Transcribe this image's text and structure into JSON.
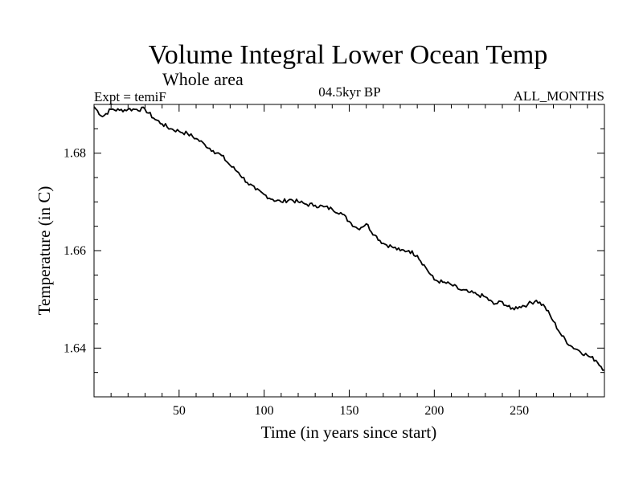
{
  "chart_data": {
    "type": "line",
    "title": "Volume Integral Lower Ocean Temp",
    "subtitle": "Whole area",
    "left_label": "Expt = temiF",
    "center_label": "04.5kyr BP",
    "right_label": "ALL_MONTHS",
    "xlabel": "Time (in years since start)",
    "ylabel": "Temperature (in C)",
    "xlim": [
      0,
      300
    ],
    "ylim": [
      1.63,
      1.69
    ],
    "x_ticks": [
      50,
      100,
      150,
      200,
      250
    ],
    "x_tick_labels": [
      "50",
      "100",
      "150",
      "200",
      "250"
    ],
    "y_ticks": [
      1.64,
      1.66,
      1.68
    ],
    "y_tick_labels": [
      "1.64",
      "1.66",
      "1.68"
    ],
    "series": [
      {
        "name": "temiF",
        "x": [
          0,
          5,
          10,
          15,
          20,
          25,
          30,
          35,
          40,
          45,
          50,
          55,
          60,
          65,
          70,
          75,
          80,
          85,
          90,
          95,
          100,
          105,
          110,
          115,
          120,
          125,
          130,
          135,
          140,
          145,
          150,
          155,
          160,
          165,
          170,
          175,
          180,
          185,
          190,
          195,
          200,
          205,
          210,
          215,
          220,
          225,
          230,
          235,
          240,
          245,
          250,
          255,
          260,
          265,
          270,
          275,
          280,
          285,
          290,
          295,
          300
        ],
        "y": [
          1.6895,
          1.6875,
          1.689,
          1.6888,
          1.689,
          1.689,
          1.689,
          1.6872,
          1.686,
          1.685,
          1.6845,
          1.684,
          1.683,
          1.6818,
          1.6805,
          1.6795,
          1.6775,
          1.676,
          1.674,
          1.6725,
          1.6715,
          1.6705,
          1.67,
          1.6705,
          1.67,
          1.6695,
          1.6693,
          1.669,
          1.6685,
          1.6678,
          1.666,
          1.6645,
          1.6655,
          1.6632,
          1.6615,
          1.6608,
          1.66,
          1.66,
          1.659,
          1.6565,
          1.654,
          1.6535,
          1.653,
          1.652,
          1.6515,
          1.651,
          1.6505,
          1.649,
          1.6495,
          1.648,
          1.6485,
          1.649,
          1.6498,
          1.6485,
          1.6455,
          1.6425,
          1.6405,
          1.6395,
          1.6385,
          1.6375,
          1.6355
        ]
      }
    ]
  }
}
